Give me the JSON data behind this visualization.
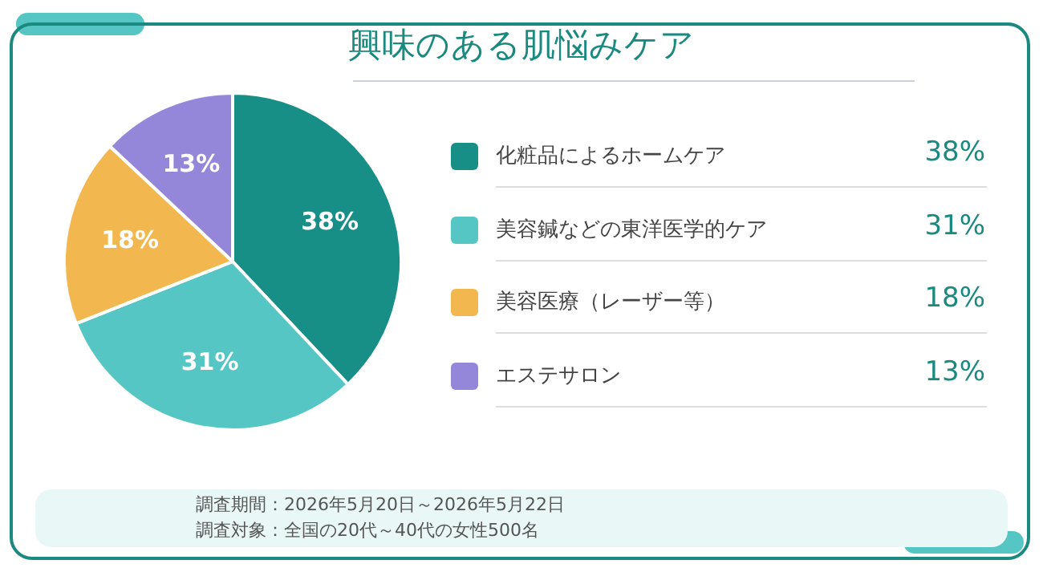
{
  "chart_data": {
    "type": "pie",
    "title": "興味のある肌悩みケア",
    "categories": [
      "化粧品によるホームケア",
      "美容鍼などの東洋医学的ケア",
      "美容医療（レーザー等）",
      "エステサロン"
    ],
    "values": [
      38,
      31,
      18,
      13
    ],
    "colors": [
      "#178f86",
      "#55c6c3",
      "#f2b84f",
      "#9486d9"
    ],
    "value_labels": [
      "38%",
      "31%",
      "18%",
      "13%"
    ],
    "legend": "right",
    "annotations": [
      "調査期間：2026年5月20日～2026年5月22日",
      "調査対象：全国の20代～40代の女性500名"
    ]
  }
}
